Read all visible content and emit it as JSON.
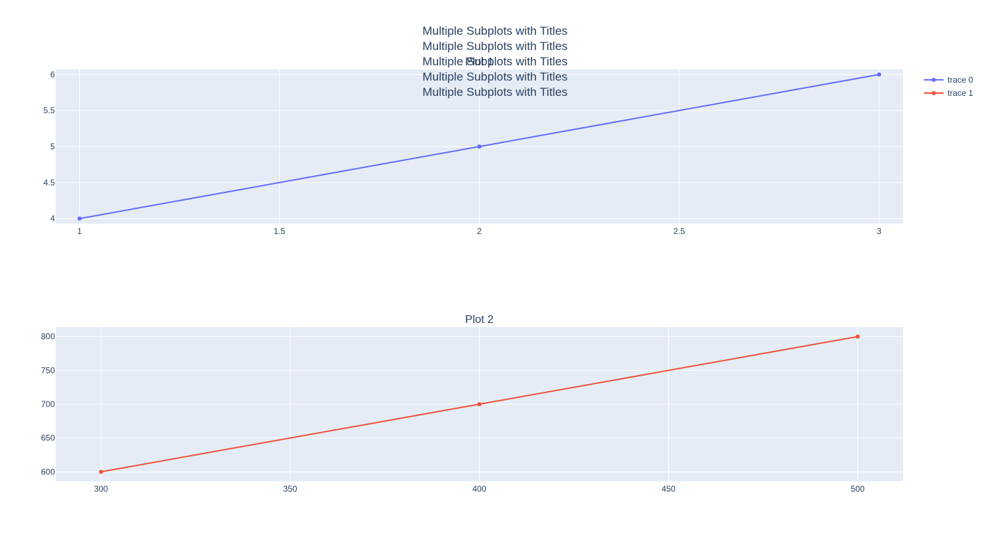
{
  "title_lines": [
    "Multiple Subplots with Titles",
    "Multiple Subplots with Titles",
    "Multiple Subplots with Titles",
    "Multiple Subplots with Titles",
    "Multiple Subplots with Titles"
  ],
  "colors": {
    "plot_bg": "#E5ECF6",
    "grid": "#FFFFFF",
    "text": "#2A3F5F",
    "tick_text": "#2A3F5F"
  },
  "legend": {
    "placement": "top-right",
    "items": [
      {
        "name": "trace 0",
        "color": "#636EFA"
      },
      {
        "name": "trace 1",
        "color": "#EF553B"
      }
    ]
  },
  "chart_data": [
    {
      "type": "line",
      "title": "Plot 1",
      "xlabel": "",
      "ylabel": "",
      "grid": true,
      "series": [
        {
          "name": "trace 0",
          "color": "#636EFA",
          "x": [
            1,
            2,
            3
          ],
          "y": [
            4,
            5,
            6
          ]
        }
      ],
      "xlim": [
        0.94,
        3.06
      ],
      "ylim": [
        3.93,
        6.07
      ],
      "xticks": [
        1,
        1.5,
        2,
        2.5,
        3
      ],
      "xtick_labels": [
        "1",
        "1.5",
        "2",
        "2.5",
        "3"
      ],
      "yticks": [
        4,
        4.5,
        5,
        5.5,
        6
      ],
      "ytick_labels": [
        "4",
        "4.5",
        "5",
        "5.5",
        "6"
      ]
    },
    {
      "type": "line",
      "title": "Plot 2",
      "xlabel": "",
      "ylabel": "",
      "grid": true,
      "series": [
        {
          "name": "trace 1",
          "color": "#EF553B",
          "x": [
            300,
            400,
            500
          ],
          "y": [
            600,
            700,
            800
          ]
        }
      ],
      "xlim": [
        288,
        512
      ],
      "ylim": [
        586,
        814
      ],
      "xticks": [
        300,
        350,
        400,
        450,
        500
      ],
      "xtick_labels": [
        "300",
        "350",
        "400",
        "450",
        "500"
      ],
      "yticks": [
        600,
        650,
        700,
        750,
        800
      ],
      "ytick_labels": [
        "600",
        "650",
        "700",
        "750",
        "800"
      ]
    }
  ]
}
